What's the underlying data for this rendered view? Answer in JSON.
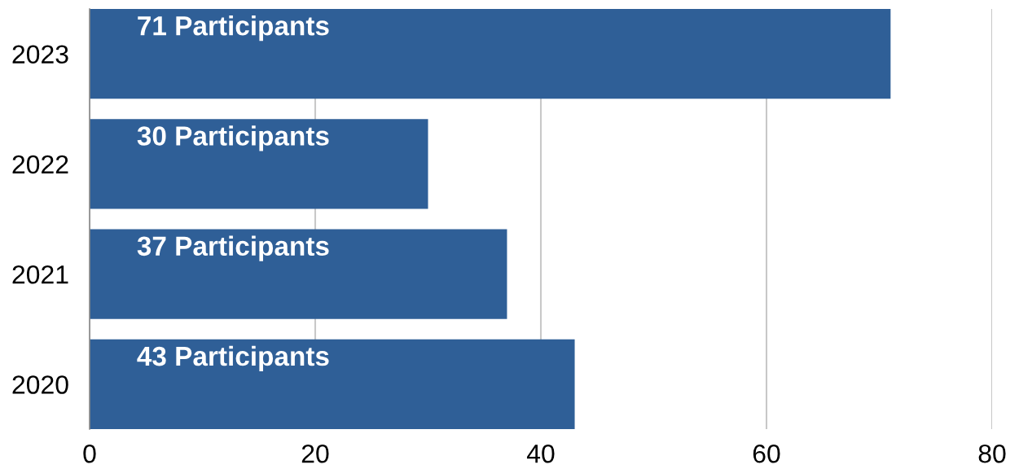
{
  "chart_data": {
    "type": "bar",
    "orientation": "horizontal",
    "categories": [
      "2023",
      "2022",
      "2021",
      "2020"
    ],
    "values": [
      71,
      30,
      37,
      43
    ],
    "color": "#2f5f97",
    "value_labels": [
      "71 Participants",
      "30 Participants",
      "37 Participants",
      "43 Participants"
    ],
    "xlim": [
      0,
      80
    ],
    "xticks": [
      0,
      20,
      40,
      60,
      80
    ],
    "grid": "x"
  }
}
